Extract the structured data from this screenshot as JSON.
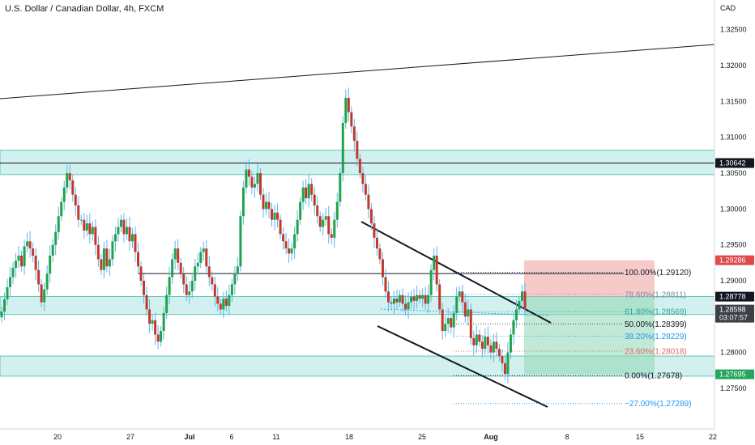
{
  "chart_data": {
    "type": "candlestick",
    "title": "U.S. Dollar / Canadian Dollar, 4h, FXCM",
    "currency_label": "CAD",
    "ylim": [
      1.2715,
      1.327
    ],
    "y_ticks": [
      "1.32500",
      "1.32000",
      "1.31500",
      "1.31000",
      "1.30500",
      "1.30000",
      "1.29500",
      "1.29000",
      "1.28500",
      "1.28000",
      "1.27500"
    ],
    "x_ticks": [
      "20",
      "27",
      "Jul",
      "6",
      "11",
      "18",
      "25",
      "Aug",
      "8",
      "15",
      "22"
    ],
    "price_badges": [
      {
        "label": "1.30642",
        "value": 1.30642,
        "color": "#131722",
        "text_color": "#ffffff"
      },
      {
        "label": "1.29286",
        "value": 1.29286,
        "color": "#e04a4a",
        "text_color": "#ffffff"
      },
      {
        "label": "1.28778",
        "value": 1.28778,
        "color": "#131722",
        "text_color": "#ffffff"
      },
      {
        "label": "1.28598",
        "sublabel": "03:07:57",
        "value": 1.28598,
        "color": "#3b3f46",
        "text_color": "#ffffff"
      },
      {
        "label": "1.27695",
        "value": 1.27695,
        "color": "#26a65b",
        "text_color": "#ffffff"
      }
    ],
    "fib_levels": [
      {
        "label": "100.00%(1.29120)",
        "value": 1.2912,
        "color": "#131722"
      },
      {
        "label": "78.60%(1.28811)",
        "value": 1.28811,
        "color": "#7a8a9a"
      },
      {
        "label": "61.80%(1.28569)",
        "value": 1.28569,
        "color": "#26a69a"
      },
      {
        "label": "50.00%(1.28399)",
        "value": 1.28399,
        "color": "#131722"
      },
      {
        "label": "38.20%(1.28229)",
        "value": 1.28229,
        "color": "#2196f3"
      },
      {
        "label": "23.60%(1.28018)",
        "value": 1.28018,
        "color": "#e06666"
      },
      {
        "label": "0.00%(1.27678)",
        "value": 1.27678,
        "color": "#131722"
      },
      {
        "label": "−27.00%(1.27289)",
        "value": 1.27289,
        "color": "#2196f3"
      }
    ],
    "zones": [
      {
        "name": "upper-zone",
        "low": 1.3048,
        "high": 1.3082,
        "color": "#7fd6cf"
      },
      {
        "name": "middle-zone",
        "low": 1.2853,
        "high": 1.2878,
        "color": "#7fd6cf"
      },
      {
        "name": "lower-zone",
        "low": 1.2767,
        "high": 1.2795,
        "color": "#7fd6cf"
      }
    ],
    "horizontal_lines": [
      {
        "name": "resistance-line",
        "value": 1.30642
      },
      {
        "name": "mid-line",
        "value": 1.291
      }
    ],
    "trade_box": {
      "entry": 1.28778,
      "stop": 1.29286,
      "target": 1.27695
    },
    "candles": [
      1.2857,
      1.2874,
      1.2891,
      1.2905,
      1.2918,
      1.2928,
      1.2935,
      1.292,
      1.2948,
      1.2955,
      1.2945,
      1.2935,
      1.2915,
      1.2895,
      1.287,
      1.2888,
      1.291,
      1.2935,
      1.295,
      1.2968,
      1.299,
      1.301,
      1.303,
      1.305,
      1.304,
      1.302,
      1.3005,
      1.2985,
      1.2985,
      1.297,
      1.298,
      1.2965,
      1.2975,
      1.295,
      1.293,
      1.2915,
      1.2945,
      1.292,
      1.293,
      1.2955,
      1.2965,
      1.2975,
      1.2985,
      1.2965,
      1.2975,
      1.2955,
      1.2965,
      1.294,
      1.292,
      1.29,
      1.288,
      1.286,
      1.284,
      1.2845,
      1.2825,
      1.2815,
      1.283,
      1.2855,
      1.288,
      1.2905,
      1.293,
      1.2945,
      1.2925,
      1.291,
      1.2895,
      1.288,
      1.2885,
      1.29,
      1.292,
      1.2925,
      1.294,
      1.2945,
      1.292,
      1.2905,
      1.2895,
      1.2878,
      1.2868,
      1.286,
      1.2875,
      1.2865,
      1.288,
      1.2895,
      1.291,
      1.292,
      1.299,
      1.303,
      1.3055,
      1.3045,
      1.303,
      1.3035,
      1.305,
      1.302,
      1.3,
      1.301,
      1.3,
      1.2985,
      1.2995,
      1.2985,
      1.2965,
      1.2955,
      1.2945,
      1.2938,
      1.2945,
      1.2965,
      1.2985,
      1.301,
      1.303,
      1.3015,
      1.3035,
      1.302,
      1.3005,
      1.299,
      1.2975,
      1.2985,
      1.299,
      1.2965,
      1.296,
      1.2985,
      1.301,
      1.305,
      1.312,
      1.3155,
      1.3135,
      1.3115,
      1.3095,
      1.307,
      1.305,
      1.3035,
      1.302,
      1.3,
      1.298,
      1.296,
      1.2945,
      1.293,
      1.2905,
      1.2885,
      1.287,
      1.2868,
      1.2875,
      1.287,
      1.288,
      1.2868,
      1.286,
      1.287,
      1.2878,
      1.2872,
      1.288,
      1.2875,
      1.288,
      1.2868,
      1.288,
      1.2915,
      1.2935,
      1.2895,
      1.286,
      1.283,
      1.284,
      1.2848,
      1.2835,
      1.2855,
      1.2878,
      1.2885,
      1.287,
      1.285,
      1.286,
      1.282,
      1.281,
      1.2825,
      1.2815,
      1.2805,
      1.2822,
      1.281,
      1.28,
      1.2815,
      1.2805,
      1.2795,
      1.2785,
      1.277,
      1.28,
      1.2825,
      1.2845,
      1.286,
      1.2872,
      1.2885,
      1.286
    ]
  }
}
